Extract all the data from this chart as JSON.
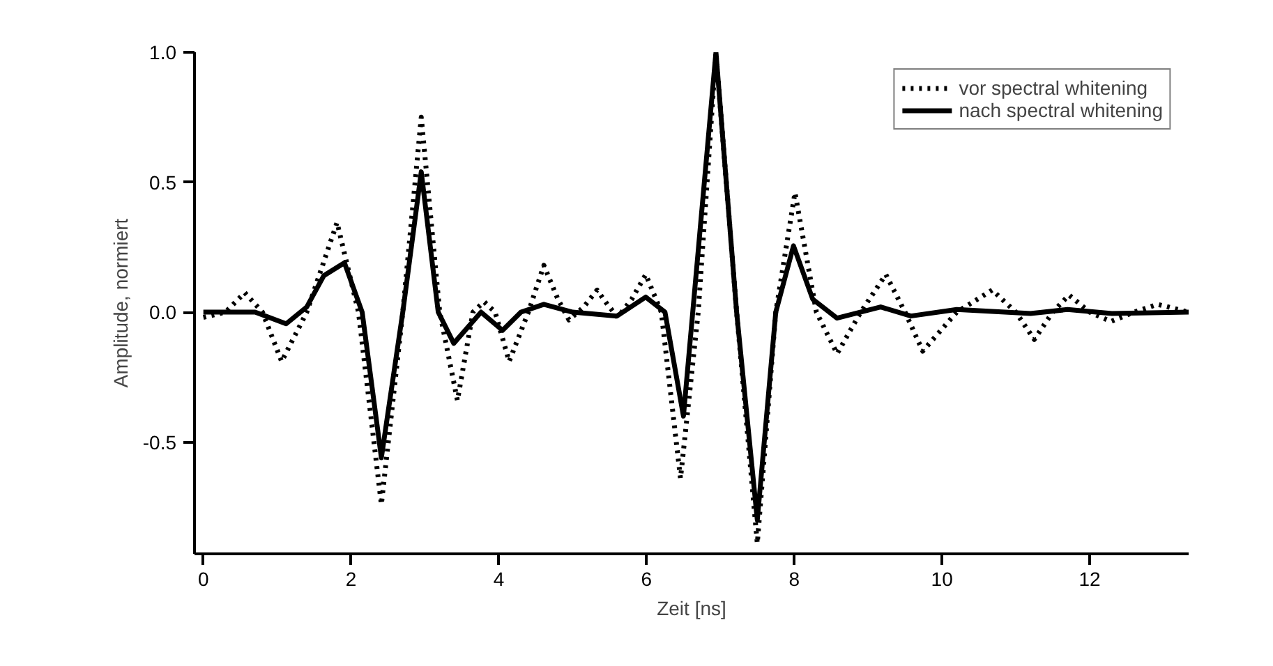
{
  "chart_data": {
    "type": "line",
    "xlabel": "Zeit [ns]",
    "ylabel": "Amplitude, normiert",
    "xlim": [
      -0.12,
      13.34
    ],
    "ylim": [
      -0.93,
      1.0
    ],
    "xticks": [
      0,
      2,
      4,
      6,
      8,
      10,
      12
    ],
    "yticks": [
      {
        "value": -0.5,
        "label": "-0.5"
      },
      {
        "value": 0,
        "label": "0.0"
      },
      {
        "value": 0.5,
        "label": "0.5"
      },
      {
        "value": 1,
        "label": "1.0"
      }
    ],
    "grid": false,
    "legend": "top right",
    "marker": "none",
    "series": [
      {
        "name": "vor spectral whitening",
        "color": "#000000",
        "line_style": "dotted",
        "x": [
          0,
          0.3,
          0.56,
          0.8,
          1.06,
          1.4,
          1.81,
          2.1,
          2.41,
          2.7,
          2.95,
          3.2,
          3.44,
          3.65,
          3.8,
          3.95,
          4.14,
          4.4,
          4.61,
          4.8,
          4.95,
          5.15,
          5.33,
          5.47,
          5.61,
          5.8,
          5.99,
          6.2,
          6.46,
          6.7,
          6.94,
          7.22,
          7.5,
          7.75,
          8.01,
          8.3,
          8.58,
          8.9,
          9.24,
          9.5,
          9.74,
          10.2,
          10.68,
          11.0,
          11.25,
          11.5,
          11.72,
          12.0,
          12.29,
          12.6,
          12.92,
          13.34
        ],
        "values": [
          -0.02,
          0,
          0.075,
          0,
          -0.19,
          0,
          0.345,
          0,
          -0.74,
          0,
          0.75,
          0,
          -0.34,
          0,
          0.04,
          0,
          -0.19,
          0,
          0.18,
          0.05,
          -0.03,
          0.02,
          0.085,
          0.03,
          -0.02,
          0.05,
          0.145,
          0,
          -0.64,
          0,
          1.0,
          0,
          -0.89,
          0,
          0.46,
          0,
          -0.16,
          0,
          0.145,
          0,
          -0.15,
          0,
          0.085,
          0,
          -0.105,
          0,
          0.066,
          0,
          -0.036,
          0,
          0.03,
          0
        ]
      },
      {
        "name": "nach spectral whitening",
        "color": "#000000",
        "line_style": "solid",
        "x": [
          0,
          0.7,
          1.12,
          1.4,
          1.63,
          1.91,
          2.15,
          2.41,
          2.7,
          2.95,
          3.18,
          3.39,
          3.76,
          4.05,
          4.3,
          4.61,
          5.0,
          5.6,
          5.99,
          6.25,
          6.5,
          6.72,
          6.94,
          7.22,
          7.5,
          7.75,
          7.99,
          8.25,
          8.58,
          9.17,
          9.58,
          10.2,
          11.2,
          11.7,
          12.3,
          13.34
        ],
        "values": [
          0,
          0,
          -0.045,
          0.02,
          0.14,
          0.19,
          0,
          -0.56,
          0,
          0.54,
          0,
          -0.12,
          0,
          -0.07,
          0,
          0.03,
          0,
          -0.015,
          0.058,
          0,
          -0.4,
          0.3,
          1.0,
          0,
          -0.8,
          0,
          0.255,
          0.05,
          -0.023,
          0.02,
          -0.015,
          0.01,
          -0.005,
          0.01,
          -0.005,
          0
        ]
      }
    ]
  }
}
